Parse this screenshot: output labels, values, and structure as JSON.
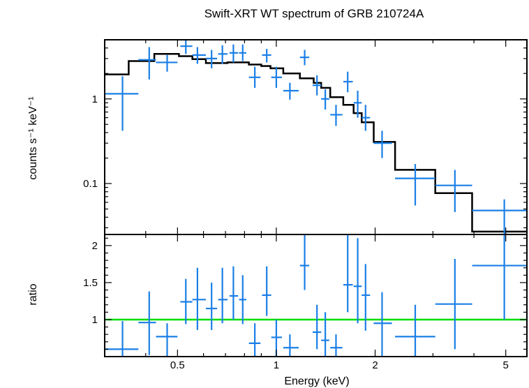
{
  "chart_data": {
    "type": "scatter",
    "title": "Swift-XRT WT spectrum of GRB 210724A",
    "xlabel": "Energy (keV)",
    "xscale": "log",
    "xlim": [
      0.3,
      5.8
    ],
    "xticks": [
      {
        "v": 0.5,
        "label": "0.5"
      },
      {
        "v": 1,
        "label": "1"
      },
      {
        "v": 2,
        "label": "2"
      },
      {
        "v": 5,
        "label": "5"
      }
    ],
    "top_panel": {
      "ylabel": "counts s⁻¹ keV⁻¹",
      "yscale": "log",
      "ylim": [
        0.025,
        5.0
      ],
      "yticks": [
        {
          "v": 0.1,
          "label": "0.1"
        },
        {
          "v": 1,
          "label": "1"
        }
      ],
      "data": [
        {
          "x": 0.34,
          "xlo": 0.3,
          "xhi": 0.38,
          "y": 1.15,
          "ylo": 0.42,
          "yhi": 1.85
        },
        {
          "x": 0.41,
          "xlo": 0.38,
          "xhi": 0.43,
          "y": 2.9,
          "ylo": 1.7,
          "yhi": 4.1
        },
        {
          "x": 0.465,
          "xlo": 0.43,
          "xhi": 0.5,
          "y": 2.7,
          "ylo": 2.1,
          "yhi": 3.3
        },
        {
          "x": 0.53,
          "xlo": 0.51,
          "xhi": 0.555,
          "y": 4.2,
          "ylo": 3.4,
          "yhi": 5.2
        },
        {
          "x": 0.575,
          "xlo": 0.555,
          "xhi": 0.61,
          "y": 3.3,
          "ylo": 2.6,
          "yhi": 4.1
        },
        {
          "x": 0.635,
          "xlo": 0.61,
          "xhi": 0.66,
          "y": 3.0,
          "ylo": 2.3,
          "yhi": 3.8
        },
        {
          "x": 0.685,
          "xlo": 0.665,
          "xhi": 0.71,
          "y": 3.4,
          "ylo": 2.6,
          "yhi": 4.3
        },
        {
          "x": 0.74,
          "xlo": 0.72,
          "xhi": 0.765,
          "y": 3.5,
          "ylo": 2.7,
          "yhi": 4.4
        },
        {
          "x": 0.79,
          "xlo": 0.77,
          "xhi": 0.81,
          "y": 3.5,
          "ylo": 2.8,
          "yhi": 4.4
        },
        {
          "x": 0.86,
          "xlo": 0.825,
          "xhi": 0.895,
          "y": 1.8,
          "ylo": 1.35,
          "yhi": 2.4
        },
        {
          "x": 0.935,
          "xlo": 0.905,
          "xhi": 0.965,
          "y": 3.3,
          "ylo": 2.7,
          "yhi": 3.9
        },
        {
          "x": 1.0,
          "xlo": 0.965,
          "xhi": 1.04,
          "y": 1.8,
          "ylo": 1.35,
          "yhi": 2.4
        },
        {
          "x": 1.1,
          "xlo": 1.05,
          "xhi": 1.17,
          "y": 1.25,
          "ylo": 0.98,
          "yhi": 1.55
        },
        {
          "x": 1.22,
          "xlo": 1.18,
          "xhi": 1.26,
          "y": 3.1,
          "ylo": 2.5,
          "yhi": 3.8
        },
        {
          "x": 1.33,
          "xlo": 1.29,
          "xhi": 1.37,
          "y": 1.45,
          "ylo": 1.1,
          "yhi": 1.9
        },
        {
          "x": 1.41,
          "xlo": 1.37,
          "xhi": 1.45,
          "y": 1.0,
          "ylo": 0.75,
          "yhi": 1.3
        },
        {
          "x": 1.52,
          "xlo": 1.46,
          "xhi": 1.59,
          "y": 0.65,
          "ylo": 0.48,
          "yhi": 0.85
        },
        {
          "x": 1.65,
          "xlo": 1.6,
          "xhi": 1.71,
          "y": 1.6,
          "ylo": 1.2,
          "yhi": 2.1
        },
        {
          "x": 1.77,
          "xlo": 1.72,
          "xhi": 1.82,
          "y": 0.9,
          "ylo": 0.6,
          "yhi": 1.25
        },
        {
          "x": 1.87,
          "xlo": 1.82,
          "xhi": 1.93,
          "y": 0.6,
          "ylo": 0.42,
          "yhi": 0.85
        },
        {
          "x": 2.1,
          "xlo": 1.98,
          "xhi": 2.25,
          "y": 0.3,
          "ylo": 0.2,
          "yhi": 0.42
        },
        {
          "x": 2.65,
          "xlo": 2.3,
          "xhi": 3.05,
          "y": 0.115,
          "ylo": 0.055,
          "yhi": 0.17
        },
        {
          "x": 3.5,
          "xlo": 3.05,
          "xhi": 3.95,
          "y": 0.095,
          "ylo": 0.046,
          "yhi": 0.145
        },
        {
          "x": 4.95,
          "xlo": 3.95,
          "xhi": 5.8,
          "y": 0.048,
          "ylo": 0.022,
          "yhi": 0.065
        }
      ],
      "model": [
        {
          "lo": 0.3,
          "hi": 0.355,
          "y": 1.95
        },
        {
          "lo": 0.355,
          "hi": 0.425,
          "y": 2.8
        },
        {
          "lo": 0.425,
          "hi": 0.505,
          "y": 3.4
        },
        {
          "lo": 0.505,
          "hi": 0.555,
          "y": 3.2
        },
        {
          "lo": 0.555,
          "hi": 0.61,
          "y": 2.95
        },
        {
          "lo": 0.61,
          "hi": 0.66,
          "y": 2.65
        },
        {
          "lo": 0.66,
          "hi": 0.71,
          "y": 2.65
        },
        {
          "lo": 0.71,
          "hi": 0.765,
          "y": 2.7
        },
        {
          "lo": 0.765,
          "hi": 0.825,
          "y": 2.7
        },
        {
          "lo": 0.825,
          "hi": 0.9,
          "y": 2.55
        },
        {
          "lo": 0.9,
          "hi": 0.96,
          "y": 2.45
        },
        {
          "lo": 0.96,
          "hi": 1.05,
          "y": 2.3
        },
        {
          "lo": 1.05,
          "hi": 1.18,
          "y": 2.0
        },
        {
          "lo": 1.18,
          "hi": 1.3,
          "y": 1.75
        },
        {
          "lo": 1.3,
          "hi": 1.37,
          "y": 1.55
        },
        {
          "lo": 1.37,
          "hi": 1.46,
          "y": 1.35
        },
        {
          "lo": 1.46,
          "hi": 1.6,
          "y": 1.05
        },
        {
          "lo": 1.6,
          "hi": 1.72,
          "y": 0.85
        },
        {
          "lo": 1.72,
          "hi": 1.82,
          "y": 0.68
        },
        {
          "lo": 1.82,
          "hi": 1.98,
          "y": 0.53
        },
        {
          "lo": 1.98,
          "hi": 2.3,
          "y": 0.31
        },
        {
          "lo": 2.3,
          "hi": 3.05,
          "y": 0.145
        },
        {
          "lo": 3.05,
          "hi": 3.95,
          "y": 0.077
        },
        {
          "lo": 3.95,
          "hi": 5.8,
          "y": 0.027
        }
      ]
    },
    "bottom_panel": {
      "ylabel": "ratio",
      "ylim": [
        0.5,
        2.15
      ],
      "yticks": [
        {
          "v": 1,
          "label": "1"
        },
        {
          "v": 1.5,
          "label": "1.5"
        },
        {
          "v": 2,
          "label": "2"
        }
      ],
      "reference_line": 1.0,
      "reference_color": "#00dd00",
      "data": [
        {
          "x": 0.34,
          "xlo": 0.3,
          "xhi": 0.38,
          "y": 0.6,
          "ylo": 0.5,
          "yhi": 0.98
        },
        {
          "x": 0.41,
          "xlo": 0.38,
          "xhi": 0.43,
          "y": 0.96,
          "ylo": 0.52,
          "yhi": 1.38
        },
        {
          "x": 0.465,
          "xlo": 0.43,
          "xhi": 0.5,
          "y": 0.77,
          "ylo": 0.5,
          "yhi": 0.95
        },
        {
          "x": 0.53,
          "xlo": 0.51,
          "xhi": 0.555,
          "y": 1.24,
          "ylo": 0.94,
          "yhi": 1.55
        },
        {
          "x": 0.575,
          "xlo": 0.555,
          "xhi": 0.61,
          "y": 1.27,
          "ylo": 0.86,
          "yhi": 1.7
        },
        {
          "x": 0.635,
          "xlo": 0.61,
          "xhi": 0.66,
          "y": 1.15,
          "ylo": 0.86,
          "yhi": 1.5
        },
        {
          "x": 0.685,
          "xlo": 0.665,
          "xhi": 0.71,
          "y": 1.27,
          "ylo": 0.95,
          "yhi": 1.7
        },
        {
          "x": 0.74,
          "xlo": 0.72,
          "xhi": 0.765,
          "y": 1.32,
          "ylo": 1.0,
          "yhi": 1.72
        },
        {
          "x": 0.79,
          "xlo": 0.77,
          "xhi": 0.81,
          "y": 1.27,
          "ylo": 0.94,
          "yhi": 1.6
        },
        {
          "x": 0.86,
          "xlo": 0.825,
          "xhi": 0.895,
          "y": 0.68,
          "ylo": 0.5,
          "yhi": 0.95
        },
        {
          "x": 0.935,
          "xlo": 0.905,
          "xhi": 0.965,
          "y": 1.33,
          "ylo": 1.05,
          "yhi": 1.72
        },
        {
          "x": 1.0,
          "xlo": 0.965,
          "xhi": 1.04,
          "y": 0.76,
          "ylo": 0.5,
          "yhi": 1.0
        },
        {
          "x": 1.1,
          "xlo": 1.05,
          "xhi": 1.17,
          "y": 0.62,
          "ylo": 0.5,
          "yhi": 0.8
        },
        {
          "x": 1.22,
          "xlo": 1.18,
          "xhi": 1.26,
          "y": 1.73,
          "ylo": 1.4,
          "yhi": 2.15
        },
        {
          "x": 1.33,
          "xlo": 1.29,
          "xhi": 1.37,
          "y": 0.83,
          "ylo": 0.6,
          "yhi": 1.2
        },
        {
          "x": 1.41,
          "xlo": 1.37,
          "xhi": 1.45,
          "y": 0.72,
          "ylo": 0.5,
          "yhi": 1.1
        },
        {
          "x": 1.52,
          "xlo": 1.46,
          "xhi": 1.59,
          "y": 0.62,
          "ylo": 0.5,
          "yhi": 0.8
        },
        {
          "x": 1.65,
          "xlo": 1.6,
          "xhi": 1.71,
          "y": 1.47,
          "ylo": 1.1,
          "yhi": 2.15
        },
        {
          "x": 1.77,
          "xlo": 1.72,
          "xhi": 1.82,
          "y": 1.45,
          "ylo": 0.95,
          "yhi": 2.1
        },
        {
          "x": 1.87,
          "xlo": 1.82,
          "xhi": 1.93,
          "y": 1.33,
          "ylo": 0.85,
          "yhi": 1.75
        },
        {
          "x": 2.1,
          "xlo": 1.98,
          "xhi": 2.25,
          "y": 0.95,
          "ylo": 0.5,
          "yhi": 1.37
        },
        {
          "x": 2.65,
          "xlo": 2.3,
          "xhi": 3.05,
          "y": 0.77,
          "ylo": 0.5,
          "yhi": 1.2
        },
        {
          "x": 3.5,
          "xlo": 3.05,
          "xhi": 3.95,
          "y": 1.21,
          "ylo": 0.6,
          "yhi": 1.82
        },
        {
          "x": 4.95,
          "xlo": 3.95,
          "xhi": 5.8,
          "y": 1.73,
          "ylo": 1.0,
          "yhi": 2.15
        }
      ]
    },
    "colors": {
      "data": "#1a7fe6",
      "model": "#000000",
      "reference": "#00dd00",
      "frame": "#000000"
    }
  }
}
